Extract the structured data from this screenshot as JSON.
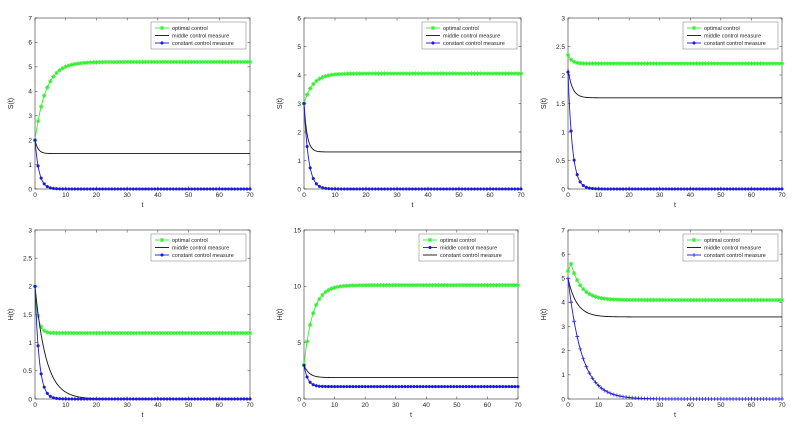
{
  "colors": {
    "green": "#33ee33",
    "blue": "#1a1adb",
    "black": "#111111"
  },
  "chart_data": [
    {
      "type": "line",
      "ylabel": "S(t)",
      "xlabel": "t",
      "xlim": [
        0,
        70
      ],
      "ylim": [
        0,
        7
      ],
      "xticks": [
        "0",
        "10",
        "20",
        "30",
        "40",
        "50",
        "60",
        "70"
      ],
      "yticks": [
        "0",
        "1",
        "2",
        "3",
        "4",
        "5",
        "6",
        "7"
      ],
      "legend": "top-right",
      "series": [
        {
          "name": "optimal control",
          "color": "green",
          "marker": "star",
          "start": 2.0,
          "end": 5.2,
          "k": 0.28
        },
        {
          "name": "middle control measure",
          "color": "black",
          "marker": "none",
          "start": 2.0,
          "end": 1.45,
          "k": 1.0
        },
        {
          "name": "constant control measure",
          "color": "blue",
          "marker": "dot",
          "start": 2.0,
          "end": 0.0,
          "k": 0.75
        }
      ]
    },
    {
      "type": "line",
      "ylabel": "S(t)",
      "xlabel": "t",
      "xlim": [
        0,
        70
      ],
      "ylim": [
        0,
        6
      ],
      "xticks": [
        "0",
        "10",
        "20",
        "30",
        "40",
        "50",
        "60",
        "70"
      ],
      "yticks": [
        "0",
        "1",
        "2",
        "3",
        "4",
        "5",
        "6"
      ],
      "legend": "top-right",
      "series": [
        {
          "name": "optimal control",
          "color": "green",
          "marker": "star",
          "start": 3.0,
          "end": 4.05,
          "k": 0.35
        },
        {
          "name": "middle control measure",
          "color": "black",
          "marker": "none",
          "start": 3.0,
          "end": 1.3,
          "k": 1.0
        },
        {
          "name": "constant control measure",
          "color": "blue",
          "marker": "dot",
          "start": 3.0,
          "end": 0.0,
          "k": 0.7
        }
      ]
    },
    {
      "type": "line",
      "ylabel": "S(t)",
      "xlabel": "t",
      "xlim": [
        0,
        70
      ],
      "ylim": [
        0,
        3
      ],
      "xticks": [
        "0",
        "10",
        "20",
        "30",
        "40",
        "50",
        "60",
        "70"
      ],
      "yticks": [
        "0",
        "0.5",
        "1",
        "1.5",
        "2",
        "2.5",
        "3"
      ],
      "legend": "top-right",
      "series": [
        {
          "name": "optimal control",
          "color": "green",
          "marker": "star",
          "start": 2.35,
          "end": 2.2,
          "k": 0.8
        },
        {
          "name": "middle control measure",
          "color": "black",
          "marker": "none",
          "start": 2.1,
          "end": 1.6,
          "k": 0.7
        },
        {
          "name": "constant control measure",
          "color": "blue",
          "marker": "dot",
          "start": 2.05,
          "end": 0.0,
          "k": 0.7
        }
      ]
    },
    {
      "type": "line",
      "ylabel": "H(t)",
      "xlabel": "t",
      "xlim": [
        0,
        70
      ],
      "ylim": [
        0,
        3
      ],
      "xticks": [
        "0",
        "10",
        "20",
        "30",
        "40",
        "50",
        "60",
        "70"
      ],
      "yticks": [
        "0",
        "0.5",
        "1",
        "1.5",
        "2",
        "2.5",
        "3"
      ],
      "legend": "top-right",
      "series": [
        {
          "name": "optimal control",
          "color": "green",
          "marker": "star",
          "start": 2.0,
          "end": 1.17,
          "k": 1.0
        },
        {
          "name": "middle control measure",
          "color": "black",
          "marker": "none",
          "start": 2.0,
          "end": 0.0,
          "k": 0.28
        },
        {
          "name": "constant control measure",
          "color": "blue",
          "marker": "dot",
          "start": 2.0,
          "end": 0.0,
          "k": 0.75
        }
      ]
    },
    {
      "type": "line",
      "ylabel": "H(t)",
      "xlabel": "t",
      "xlim": [
        0,
        70
      ],
      "ylim": [
        0,
        15
      ],
      "xticks": [
        "0",
        "10",
        "20",
        "30",
        "40",
        "50",
        "60",
        "70"
      ],
      "yticks": [
        "0",
        "5",
        "10",
        "15"
      ],
      "legend": "top-right",
      "series": [
        {
          "name": "optimal control",
          "color": "green",
          "marker": "star",
          "start": 3.0,
          "end": 10.1,
          "k": 0.35
        },
        {
          "name": "middle control measure",
          "color": "blue",
          "marker": "dot",
          "start": 3.0,
          "end": 1.1,
          "k": 0.8
        },
        {
          "name": "constant control measure",
          "color": "black",
          "marker": "none",
          "start": 3.0,
          "end": 1.9,
          "k": 0.6
        }
      ]
    },
    {
      "type": "line",
      "ylabel": "H(t)",
      "xlabel": "t",
      "xlim": [
        0,
        70
      ],
      "ylim": [
        0,
        7
      ],
      "xticks": [
        "0",
        "10",
        "20",
        "30",
        "40",
        "50",
        "60",
        "70"
      ],
      "yticks": [
        "0",
        "1",
        "2",
        "3",
        "4",
        "5",
        "6",
        "7"
      ],
      "legend": "top-right",
      "series": [
        {
          "name": "optimal control",
          "color": "green",
          "marker": "star",
          "start": 5.3,
          "end": 4.1,
          "k": 0.3,
          "peak_at": 1.0
        },
        {
          "name": "middle control measure",
          "color": "black",
          "marker": "none",
          "start": 5.0,
          "end": 3.4,
          "k": 0.35
        },
        {
          "name": "constant control measure",
          "color": "blue",
          "marker": "plus",
          "start": 5.0,
          "end": 0.0,
          "k": 0.22
        }
      ]
    }
  ]
}
